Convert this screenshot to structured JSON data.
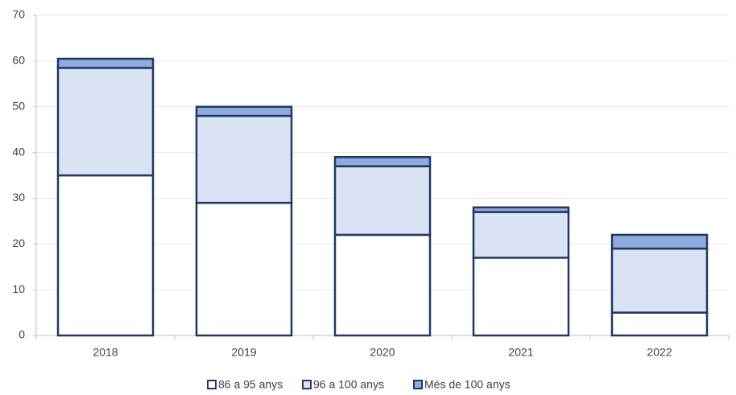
{
  "chart_data": {
    "type": "stacked_bar",
    "categories": [
      "2018",
      "2019",
      "2020",
      "2021",
      "2022"
    ],
    "series": [
      {
        "name": "86 a 95 anys",
        "color": "#ffffff",
        "values": [
          35,
          29,
          22,
          17,
          5
        ]
      },
      {
        "name": "96 a 100 anys",
        "color": "#dae3f3",
        "values": [
          23.5,
          19,
          15,
          10,
          14
        ]
      },
      {
        "name": "Més de 100 anys",
        "color": "#8faadc",
        "values": [
          2,
          2,
          2,
          1,
          3
        ]
      }
    ],
    "edge_color": "#1f3864",
    "ylim": [
      0,
      70
    ],
    "yticks": [
      0,
      10,
      20,
      30,
      40,
      50,
      60,
      70
    ],
    "grid": true,
    "legend": "bottom"
  }
}
